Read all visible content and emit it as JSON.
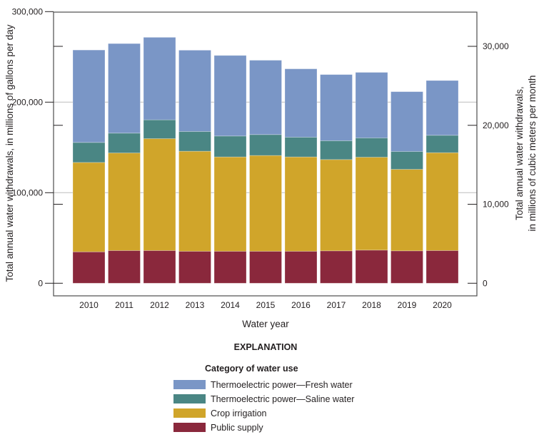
{
  "chart_data": {
    "type": "bar",
    "stacked": true,
    "categories": [
      "2010",
      "2011",
      "2012",
      "2013",
      "2014",
      "2015",
      "2016",
      "2017",
      "2018",
      "2019",
      "2020"
    ],
    "series": [
      {
        "name": "Public supply",
        "color": "#8a283c",
        "values": [
          34700,
          36100,
          36100,
          35300,
          35300,
          35300,
          35300,
          35800,
          36600,
          35800,
          36100
        ]
      },
      {
        "name": "Crop irrigation",
        "color": "#d0a52a",
        "values": [
          98700,
          107800,
          123600,
          110500,
          104200,
          105800,
          104200,
          100800,
          102600,
          90000,
          108100
        ]
      },
      {
        "name": "Thermoelectric power—Saline water",
        "color": "#4a8684",
        "values": [
          22100,
          21900,
          20800,
          21800,
          23100,
          23100,
          21800,
          20800,
          21300,
          19700,
          19200
        ]
      },
      {
        "name": "Thermoelectric power—Fresh water",
        "color": "#7a96c6",
        "values": [
          102100,
          98900,
          91100,
          89800,
          89000,
          82100,
          75500,
          73100,
          72400,
          66100,
          60500
        ]
      }
    ],
    "xlabel": "Water year",
    "ylabel": "Total annual water withdrawals, in millions of gallons per day",
    "ylabel_right": [
      "Total annual water withdrawals,",
      "in millions of cubic meters per month"
    ],
    "ylim": [
      0,
      300000
    ],
    "yticks": [
      "0",
      "100,000",
      "200,000",
      "300,000"
    ],
    "ylim_right": [
      0,
      34500
    ],
    "yticks_right": [
      "0",
      "10,000",
      "20,000",
      "30,000"
    ],
    "grid": true,
    "legend": {
      "title": "EXPLANATION",
      "subtitle": "Category of water use",
      "placement": "bottom",
      "entries": [
        "Thermoelectric power—Fresh water",
        "Thermoelectric power—Saline water",
        "Crop irrigation",
        "Public supply"
      ],
      "colors": [
        "#7a96c6",
        "#4a8684",
        "#d0a52a",
        "#8a283c"
      ]
    }
  }
}
